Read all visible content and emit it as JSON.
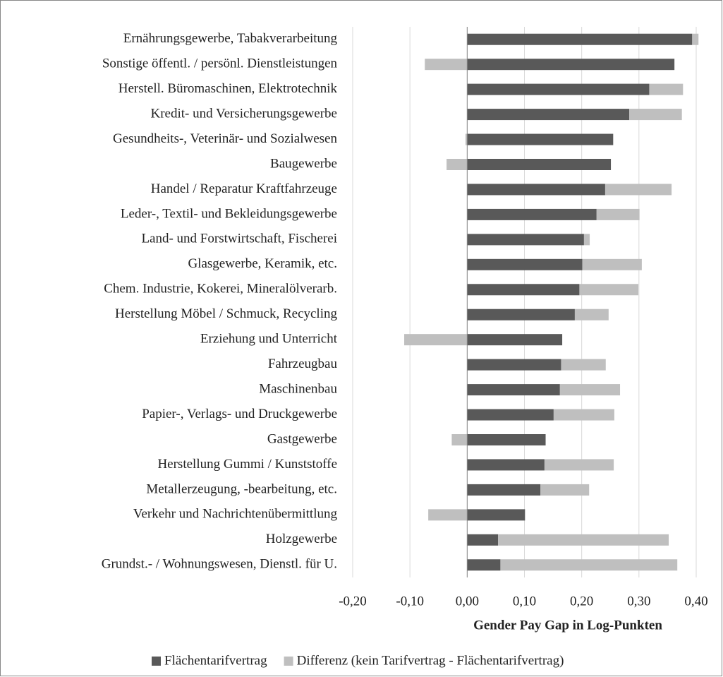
{
  "chart_data": {
    "type": "stacked-bar-horizontal",
    "categories": [
      "Ernährungsgewerbe, Tabakverarbeitung",
      "Sonstige öffentl. / persönl. Dienstleistungen",
      "Herstell. Büromaschinen, Elektrotechnik",
      "Kredit- und Versicherungsgewerbe",
      "Gesundheits-, Veterinär- und Sozialwesen",
      "Baugewerbe",
      "Handel / Reparatur Kraftfahrzeuge",
      "Leder-, Textil- und Bekleidungsgewerbe",
      "Land- und Forstwirtschaft, Fischerei",
      "Glasgewerbe, Keramik, etc.",
      "Chem. Industrie, Kokerei, Mineralölverarb.",
      "Herstellung Möbel / Schmuck, Recycling",
      "Erziehung und Unterricht",
      "Fahrzeugbau",
      "Maschinenbau",
      "Papier-, Verlags- und Druckgewerbe",
      "Gastgewerbe",
      "Herstellung Gummi / Kunststoffe",
      "Metallerzeugung, -bearbeitung, etc.",
      "Verkehr und Nachrichtenübermittlung",
      "Holzgewerbe",
      "Grundst.- / Wohnungswesen, Dienstl. für U."
    ],
    "series": [
      {
        "name": "Flächentarifvertrag",
        "color": "#595959",
        "values": [
          0.393,
          0.362,
          0.318,
          0.283,
          0.255,
          0.251,
          0.241,
          0.226,
          0.204,
          0.201,
          0.196,
          0.188,
          0.166,
          0.164,
          0.162,
          0.151,
          0.137,
          0.135,
          0.128,
          0.101,
          0.054,
          0.058
        ]
      },
      {
        "name": "Differenz (kein Tarifvertrag - Flächentarifvertrag)",
        "color": "#bfbfbf",
        "values": [
          0.011,
          -0.074,
          0.059,
          0.092,
          -0.003,
          -0.036,
          0.116,
          0.075,
          0.01,
          0.104,
          0.103,
          0.059,
          -0.11,
          0.078,
          0.105,
          0.106,
          -0.027,
          0.121,
          0.085,
          -0.068,
          0.298,
          0.309
        ]
      }
    ],
    "xlabel": "Gender Pay Gap in Log-Punkten",
    "xlim": [
      -0.2,
      0.4
    ],
    "xticks": [
      {
        "value": -0.2,
        "label": "-0,20"
      },
      {
        "value": -0.1,
        "label": "-0,10"
      },
      {
        "value": 0,
        "label": "0,00"
      },
      {
        "value": 0.1,
        "label": "0,10"
      },
      {
        "value": 0.2,
        "label": "0,20"
      },
      {
        "value": 0.3,
        "label": "0,30"
      },
      {
        "value": 0.4,
        "label": "0,40"
      }
    ],
    "grid": true,
    "legend": "bottom"
  }
}
